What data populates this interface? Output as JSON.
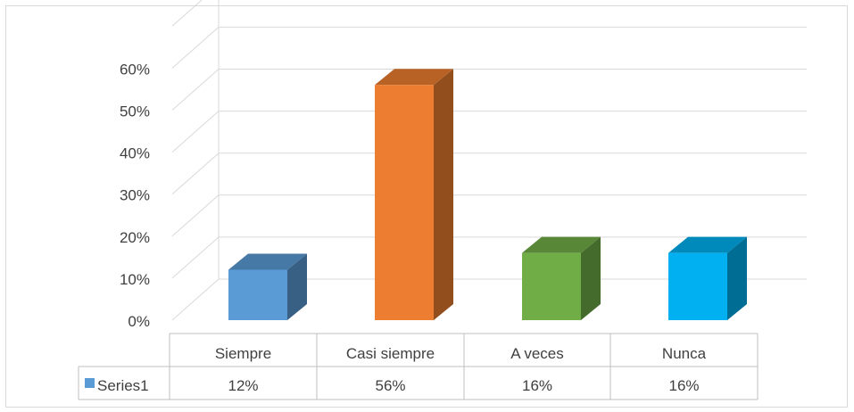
{
  "chart_data": {
    "type": "bar",
    "style": "3d-column",
    "categories": [
      "Siempre",
      "Casi siempre",
      "A veces",
      "Nunca"
    ],
    "series": [
      {
        "name": "Series1",
        "values": [
          0.12,
          0.56,
          0.16,
          0.16
        ]
      }
    ],
    "value_labels": [
      "12%",
      "56%",
      "16%",
      "16%"
    ],
    "bar_colors": [
      "#5b9bd5",
      "#ed7d31",
      "#70ad47",
      "#00b0f0"
    ],
    "yticks": [
      "0%",
      "10%",
      "20%",
      "30%",
      "40%",
      "50%",
      "60%"
    ],
    "ylim": [
      0,
      0.6
    ],
    "grid": true,
    "legend": "data-table"
  }
}
